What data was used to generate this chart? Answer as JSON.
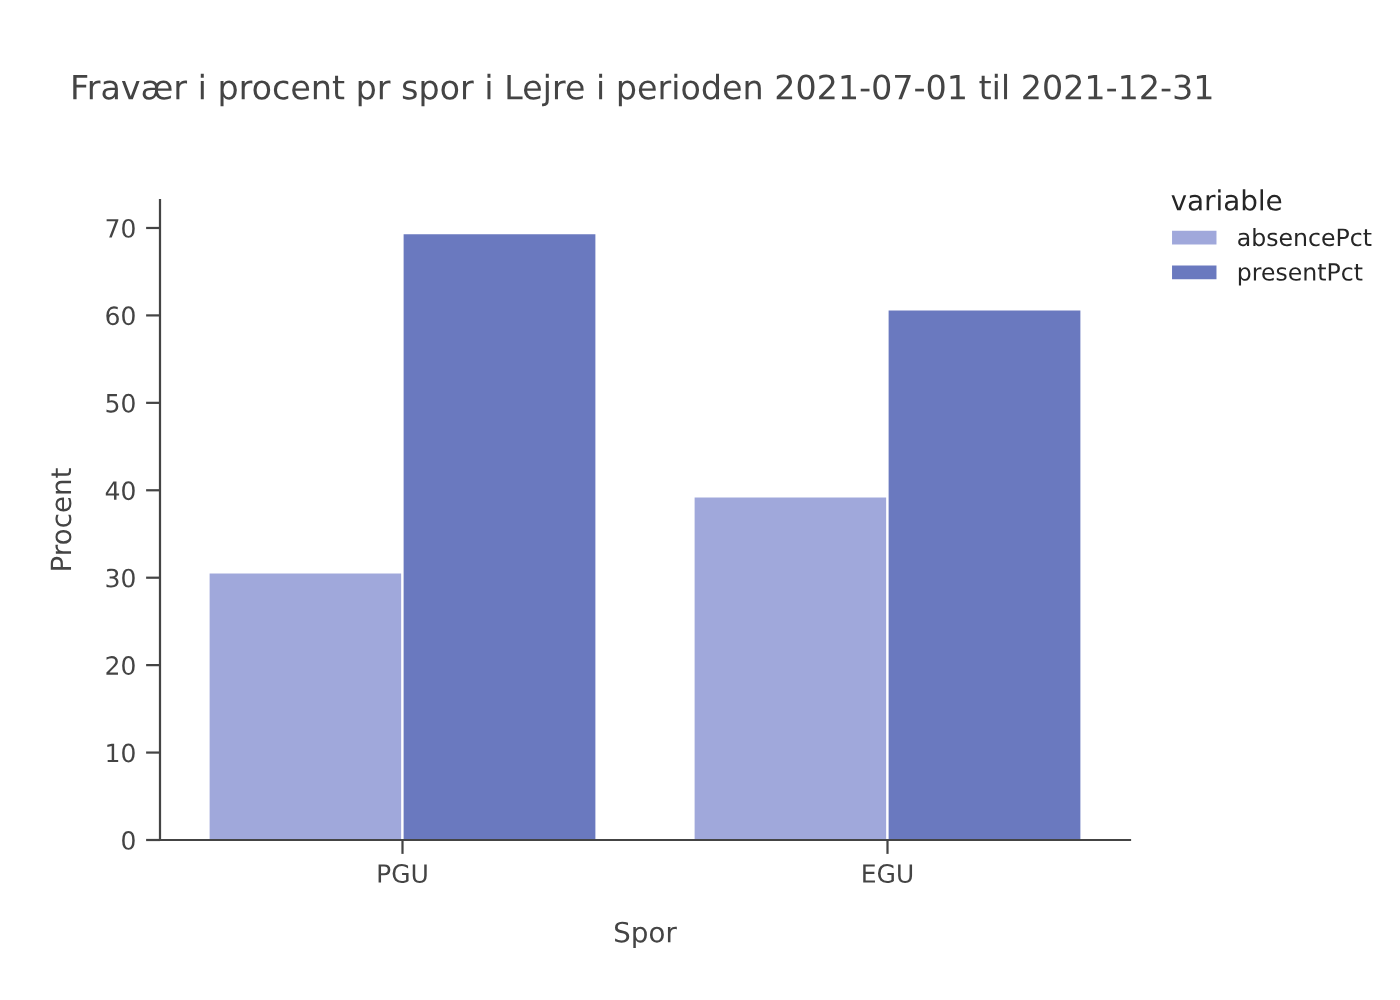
{
  "chart_data": {
    "type": "bar",
    "title": "Fravær i procent pr spor i Lejre i perioden 2021-07-01 til 2021-12-31",
    "xlabel": "Spor",
    "ylabel": "Procent",
    "legend_title": "variable",
    "categories": [
      "PGU",
      "EGU"
    ],
    "series": [
      {
        "name": "absencePct",
        "color": "#a0a8db",
        "values": [
          30.6,
          39.3
        ]
      },
      {
        "name": "presentPct",
        "color": "#6a79bf",
        "values": [
          69.4,
          60.7
        ]
      }
    ],
    "ylim": [
      0,
      73.2
    ],
    "yticks": [
      0,
      10,
      20,
      30,
      40,
      50,
      60,
      70
    ],
    "grid": false,
    "legend": "top right"
  }
}
